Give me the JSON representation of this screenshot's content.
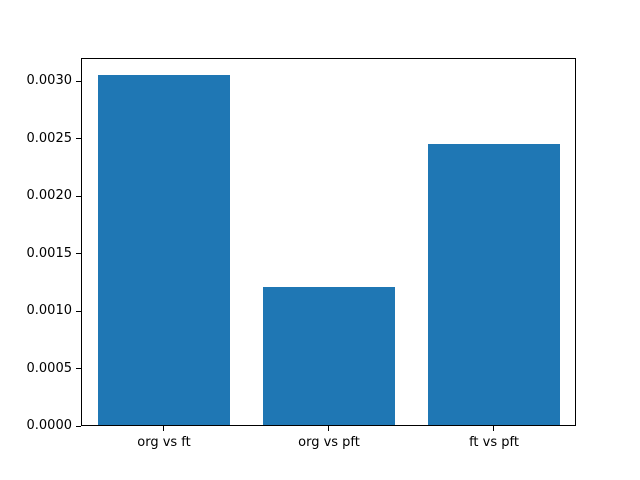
{
  "chart_data": {
    "type": "bar",
    "categories": [
      "org vs ft",
      "org vs pft",
      "ft vs pft"
    ],
    "values": [
      0.00305,
      0.00121,
      0.00245
    ],
    "ylim": [
      0,
      0.0032
    ],
    "yticks": [
      0,
      0.0005,
      0.001,
      0.0015,
      0.002,
      0.0025,
      0.003
    ],
    "ytick_labels": [
      "0.0000",
      "0.0005",
      "0.0010",
      "0.0015",
      "0.0020",
      "0.0025",
      "0.0030"
    ],
    "bar_color": "#1f77b4",
    "bar_width_fraction": 0.8,
    "grid": false,
    "legend": null,
    "background_color": "#ffffff",
    "spine_color": "#000000"
  }
}
